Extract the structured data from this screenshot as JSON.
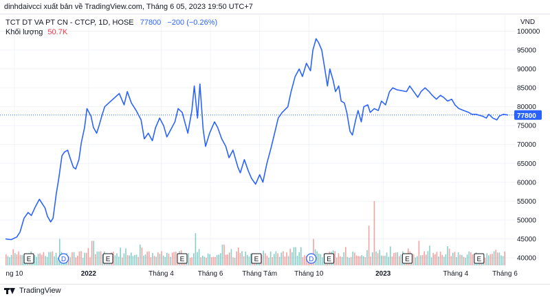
{
  "caption": "dinhdaivcci xuất bản về TradingView.com, Tháng 6 05, 2023 19:50 UTC+7",
  "legend": {
    "symbol": "TCT DT VA PT CN - CTCP, 1D, HOSE",
    "price": "77800",
    "change": "−200 (−0.26%)",
    "volume_label": "Khối lượng",
    "volume_value": "50.7K"
  },
  "footer": {
    "brand": "TradingView",
    "logo_icon": "tradingview-logo-icon"
  },
  "colors": {
    "line": "#2962ff",
    "vol_up": "#26a69a",
    "vol_down": "#ef5350",
    "grid": "#f0f3fa",
    "label_bg": "#2962ff"
  },
  "chart_data": {
    "type": "line",
    "unit": "VND",
    "ylim": [
      38000,
      101000
    ],
    "y_ticks": [
      100000,
      95000,
      90000,
      85000,
      80000,
      75000,
      70000,
      65000,
      60000,
      55000,
      50000,
      45000,
      40000
    ],
    "y_tick_labels": [
      "100000",
      "95000",
      "90000",
      "85000",
      "80000",
      "75000",
      "70000",
      "65000",
      "60000",
      "55000",
      "50000",
      "45000",
      "40000"
    ],
    "last_price_label": "77800",
    "last_price": 77800,
    "x_range": [
      "2021-09-20",
      "2023-06-10"
    ],
    "x_ticks": [
      {
        "date": "2021-10-01",
        "label": "ng 10",
        "bold": false
      },
      {
        "date": "2022-01-01",
        "label": "2022",
        "bold": true
      },
      {
        "date": "2022-04-01",
        "label": "Tháng 4",
        "bold": false
      },
      {
        "date": "2022-06-01",
        "label": "Tháng 6",
        "bold": false
      },
      {
        "date": "2022-08-01",
        "label": "Tháng Tám",
        "bold": false
      },
      {
        "date": "2022-10-01",
        "label": "Tháng 10",
        "bold": false
      },
      {
        "date": "2023-01-01",
        "label": "2023",
        "bold": true
      },
      {
        "date": "2023-04-01",
        "label": "Tháng 4",
        "bold": false
      },
      {
        "date": "2023-06-01",
        "label": "Tháng 6",
        "bold": false
      }
    ],
    "series": [
      {
        "values": [
          [
            "2021-09-20",
            45000
          ],
          [
            "2021-09-27",
            44800
          ],
          [
            "2021-10-04",
            45500
          ],
          [
            "2021-10-08",
            46800
          ],
          [
            "2021-10-13",
            50500
          ],
          [
            "2021-10-18",
            52000
          ],
          [
            "2021-10-22",
            51200
          ],
          [
            "2021-10-27",
            53500
          ],
          [
            "2021-11-01",
            55500
          ],
          [
            "2021-11-04",
            54500
          ],
          [
            "2021-11-08",
            53200
          ],
          [
            "2021-11-11",
            51000
          ],
          [
            "2021-11-15",
            49500
          ],
          [
            "2021-11-18",
            50500
          ],
          [
            "2021-11-22",
            57000
          ],
          [
            "2021-11-25",
            61000
          ],
          [
            "2021-11-29",
            67000
          ],
          [
            "2021-12-02",
            68000
          ],
          [
            "2021-12-06",
            68500
          ],
          [
            "2021-12-09",
            66500
          ],
          [
            "2021-12-13",
            64000
          ],
          [
            "2021-12-16",
            63500
          ],
          [
            "2021-12-20",
            66000
          ],
          [
            "2021-12-23",
            70500
          ],
          [
            "2021-12-27",
            74500
          ],
          [
            "2021-12-30",
            79500
          ],
          [
            "2022-01-04",
            77500
          ],
          [
            "2022-01-07",
            74500
          ],
          [
            "2022-01-11",
            73000
          ],
          [
            "2022-01-14",
            75000
          ],
          [
            "2022-01-18",
            78000
          ],
          [
            "2022-01-21",
            80000
          ],
          [
            "2022-01-26",
            81000
          ],
          [
            "2022-02-08",
            83500
          ],
          [
            "2022-02-14",
            80500
          ],
          [
            "2022-02-18",
            84000
          ],
          [
            "2022-02-23",
            81000
          ],
          [
            "2022-03-01",
            79000
          ],
          [
            "2022-03-07",
            76500
          ],
          [
            "2022-03-11",
            71500
          ],
          [
            "2022-03-16",
            73000
          ],
          [
            "2022-03-21",
            71000
          ],
          [
            "2022-03-25",
            74500
          ],
          [
            "2022-03-30",
            77000
          ],
          [
            "2022-04-04",
            75000
          ],
          [
            "2022-04-08",
            72000
          ],
          [
            "2022-04-13",
            74000
          ],
          [
            "2022-04-18",
            76000
          ],
          [
            "2022-04-22",
            79500
          ],
          [
            "2022-04-27",
            78500
          ],
          [
            "2022-05-04",
            73000
          ],
          [
            "2022-05-09",
            79000
          ],
          [
            "2022-05-12",
            85500
          ],
          [
            "2022-05-16",
            77000
          ],
          [
            "2022-05-19",
            86000
          ],
          [
            "2022-05-23",
            74000
          ],
          [
            "2022-05-26",
            69500
          ],
          [
            "2022-05-31",
            73000
          ],
          [
            "2022-06-06",
            76000
          ],
          [
            "2022-06-10",
            74500
          ],
          [
            "2022-06-15",
            71500
          ],
          [
            "2022-06-20",
            69500
          ],
          [
            "2022-06-24",
            66500
          ],
          [
            "2022-06-29",
            68500
          ],
          [
            "2022-07-05",
            64000
          ],
          [
            "2022-07-08",
            62500
          ],
          [
            "2022-07-13",
            66000
          ],
          [
            "2022-07-18",
            63000
          ],
          [
            "2022-07-22",
            61000
          ],
          [
            "2022-07-27",
            59500
          ],
          [
            "2022-08-01",
            62000
          ],
          [
            "2022-08-05",
            60000
          ],
          [
            "2022-08-10",
            65000
          ],
          [
            "2022-08-15",
            69000
          ],
          [
            "2022-08-19",
            72500
          ],
          [
            "2022-08-24",
            77000
          ],
          [
            "2022-08-29",
            78500
          ],
          [
            "2022-09-05",
            80000
          ],
          [
            "2022-09-09",
            84000
          ],
          [
            "2022-09-14",
            88000
          ],
          [
            "2022-09-19",
            90000
          ],
          [
            "2022-09-23",
            88000
          ],
          [
            "2022-09-28",
            91500
          ],
          [
            "2022-10-03",
            89500
          ],
          [
            "2022-10-06",
            95000
          ],
          [
            "2022-10-10",
            98000
          ],
          [
            "2022-10-13",
            97000
          ],
          [
            "2022-10-17",
            95000
          ],
          [
            "2022-10-20",
            91000
          ],
          [
            "2022-10-24",
            85500
          ],
          [
            "2022-10-27",
            90000
          ],
          [
            "2022-10-31",
            87000
          ],
          [
            "2022-11-03",
            84000
          ],
          [
            "2022-11-07",
            85500
          ],
          [
            "2022-11-10",
            81500
          ],
          [
            "2022-11-14",
            81000
          ],
          [
            "2022-11-17",
            78500
          ],
          [
            "2022-11-21",
            73500
          ],
          [
            "2022-11-24",
            72500
          ],
          [
            "2022-11-28",
            76500
          ],
          [
            "2022-12-01",
            79000
          ],
          [
            "2022-12-05",
            76000
          ],
          [
            "2022-12-08",
            80000
          ],
          [
            "2022-12-13",
            80500
          ],
          [
            "2022-12-16",
            78500
          ],
          [
            "2022-12-21",
            79500
          ],
          [
            "2022-12-26",
            79000
          ],
          [
            "2022-12-30",
            81500
          ],
          [
            "2023-01-04",
            80500
          ],
          [
            "2023-01-09",
            84000
          ],
          [
            "2023-01-13",
            85000
          ],
          [
            "2023-01-18",
            84500
          ],
          [
            "2023-01-30",
            84000
          ],
          [
            "2023-02-03",
            85500
          ],
          [
            "2023-02-08",
            84000
          ],
          [
            "2023-02-13",
            82500
          ],
          [
            "2023-02-17",
            84000
          ],
          [
            "2023-02-22",
            85000
          ],
          [
            "2023-02-27",
            84000
          ],
          [
            "2023-03-03",
            83000
          ],
          [
            "2023-03-08",
            82000
          ],
          [
            "2023-03-13",
            83000
          ],
          [
            "2023-03-17",
            82500
          ],
          [
            "2023-03-22",
            81500
          ],
          [
            "2023-03-27",
            82000
          ],
          [
            "2023-03-31",
            80500
          ],
          [
            "2023-04-05",
            79500
          ],
          [
            "2023-04-11",
            79000
          ],
          [
            "2023-04-17",
            78500
          ],
          [
            "2023-04-21",
            78000
          ],
          [
            "2023-04-26",
            78000
          ],
          [
            "2023-05-04",
            77500
          ],
          [
            "2023-05-09",
            77000
          ],
          [
            "2023-05-12",
            78000
          ],
          [
            "2023-05-17",
            77000
          ],
          [
            "2023-05-22",
            76500
          ],
          [
            "2023-05-25",
            77500
          ],
          [
            "2023-05-30",
            78000
          ],
          [
            "2023-06-05",
            77800
          ]
        ]
      }
    ],
    "volume_bars": {
      "up_color": "#26a69a",
      "down_color": "#ef5350",
      "spikes": [
        [
          "2021-11-26",
          45000
        ],
        [
          "2022-01-05",
          44500
        ],
        [
          "2022-02-15",
          42500
        ],
        [
          "2022-03-04",
          43500
        ],
        [
          "2022-05-13",
          46500
        ],
        [
          "2022-06-16",
          43500
        ],
        [
          "2022-09-13",
          42800
        ],
        [
          "2022-10-06",
          45000
        ],
        [
          "2022-12-14",
          48500
        ],
        [
          "2022-12-20",
          55000
        ],
        [
          "2023-01-10",
          43000
        ],
        [
          "2023-02-14",
          44500
        ]
      ]
    },
    "events": [
      {
        "date": "2021-10-19",
        "letter": "E"
      },
      {
        "date": "2021-12-01",
        "letter": "D"
      },
      {
        "date": "2022-01-25",
        "letter": "E"
      },
      {
        "date": "2022-04-27",
        "letter": "E"
      },
      {
        "date": "2022-07-28",
        "letter": "E"
      },
      {
        "date": "2022-10-04",
        "letter": "D"
      },
      {
        "date": "2022-10-26",
        "letter": "E"
      },
      {
        "date": "2023-01-31",
        "letter": "E"
      },
      {
        "date": "2023-04-30",
        "letter": "E"
      }
    ]
  }
}
